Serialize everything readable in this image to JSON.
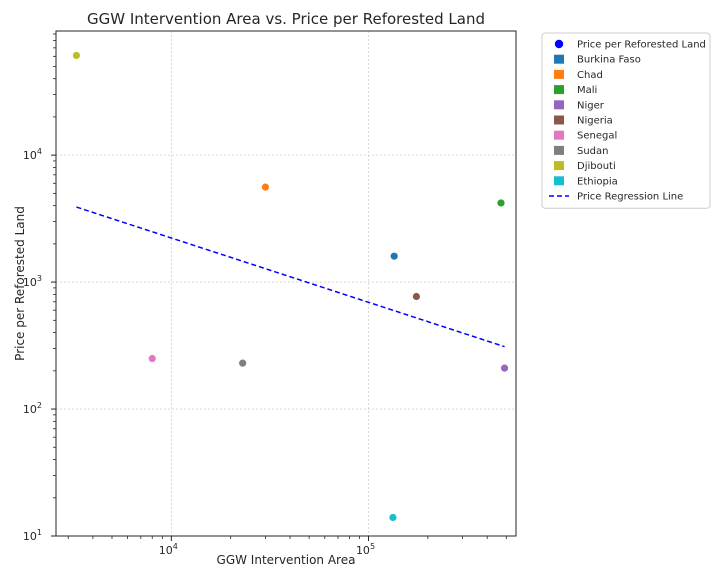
{
  "chart_data": {
    "type": "scatter",
    "title": "GGW Intervention Area vs. Price per Reforested Land",
    "xlabel": "GGW Intervention Area",
    "ylabel": "Price per Reforested Land",
    "xscale": "log",
    "yscale": "log",
    "xlim": [
      2600,
      560000
    ],
    "ylim": [
      10,
      95000
    ],
    "xticks": [
      {
        "value": 10000,
        "base": "10",
        "exp": "4"
      },
      {
        "value": 100000,
        "base": "10",
        "exp": "5"
      }
    ],
    "yticks": [
      {
        "value": 10,
        "base": "10",
        "exp": "1"
      },
      {
        "value": 100,
        "base": "10",
        "exp": "2"
      },
      {
        "value": 1000,
        "base": "10",
        "exp": "3"
      },
      {
        "value": 10000,
        "base": "10",
        "exp": "4"
      }
    ],
    "grid": true,
    "legend_position": "outside-right",
    "legend_title_entry": {
      "label": "Price per Reforested Land",
      "color": "#0000ff"
    },
    "series": [
      {
        "name": "Burkina Faso",
        "color": "#1f77b4",
        "x": 135000,
        "y": 1600
      },
      {
        "name": "Chad",
        "color": "#ff7f0e",
        "x": 30000,
        "y": 5600
      },
      {
        "name": "Mali",
        "color": "#2ca02c",
        "x": 470000,
        "y": 4200
      },
      {
        "name": "Niger",
        "color": "#9467bd",
        "x": 490000,
        "y": 210
      },
      {
        "name": "Nigeria",
        "color": "#8c564b",
        "x": 175000,
        "y": 770
      },
      {
        "name": "Senegal",
        "color": "#e377c2",
        "x": 8000,
        "y": 250
      },
      {
        "name": "Sudan",
        "color": "#7f7f7f",
        "x": 23000,
        "y": 230
      },
      {
        "name": "Djibouti",
        "color": "#bcbd22",
        "x": 3300,
        "y": 61000
      },
      {
        "name": "Ethiopia",
        "color": "#17becf",
        "x": 133000,
        "y": 14
      }
    ],
    "regression": {
      "name": "Price Regression Line",
      "color": "#0000ff",
      "style": "dashed",
      "points": [
        [
          3300,
          3900
        ],
        [
          490000,
          310
        ]
      ]
    }
  }
}
